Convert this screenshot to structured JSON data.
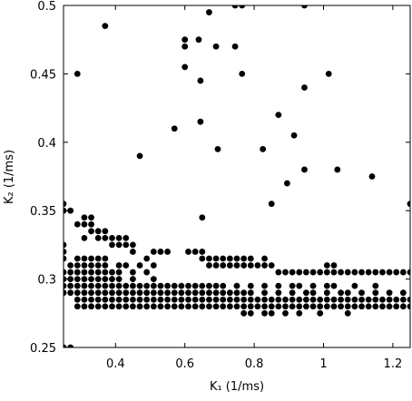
{
  "chart_data": {
    "type": "scatter",
    "xlabel": "K₁  (1/ms)",
    "ylabel": "K₂  (1/ms)",
    "xlim": [
      0.25,
      1.25
    ],
    "ylim": [
      0.25,
      0.5
    ],
    "xticks": [
      0.4,
      0.6,
      0.8,
      1,
      1.2
    ],
    "yticks": [
      0.25,
      0.3,
      0.35,
      0.4,
      0.45,
      0.5
    ],
    "grid": false,
    "color": "#000000",
    "series": [
      {
        "x": [
          0.29,
          0.31,
          0.33,
          0.35,
          0.37,
          0.39,
          0.41,
          0.43,
          0.45,
          0.47,
          0.49,
          0.51,
          0.53,
          0.55,
          0.57,
          0.59,
          0.61,
          0.63,
          0.65,
          0.67,
          0.69,
          0.71,
          0.73,
          0.75,
          0.77,
          0.79,
          0.81,
          0.83,
          0.85,
          0.87,
          0.89,
          0.91,
          0.93,
          0.95,
          0.97,
          0.99,
          1.01,
          1.03,
          1.05,
          1.07,
          1.09,
          1.11,
          1.13,
          1.15,
          1.17,
          1.19,
          1.21,
          1.23,
          1.25
        ],
        "values": [
          0.28,
          0.28,
          0.28,
          0.28,
          0.28,
          0.28,
          0.28,
          0.28,
          0.28,
          0.28,
          0.28,
          0.28,
          0.28,
          0.28,
          0.28,
          0.28,
          0.28,
          0.28,
          0.28,
          0.28,
          0.28,
          0.28,
          0.28,
          0.28,
          0.28,
          0.28,
          0.28,
          0.28,
          0.28,
          0.28,
          0.28,
          0.28,
          0.28,
          0.28,
          0.28,
          0.28,
          0.28,
          0.28,
          0.28,
          0.28,
          0.28,
          0.28,
          0.28,
          0.28,
          0.28,
          0.28,
          0.28,
          0.28,
          0.28
        ]
      },
      {
        "x": [
          0.29,
          0.31,
          0.33,
          0.35,
          0.37,
          0.39,
          0.41,
          0.43,
          0.45,
          0.47,
          0.49,
          0.51,
          0.53,
          0.55,
          0.57,
          0.59,
          0.61,
          0.63,
          0.65,
          0.67,
          0.69,
          0.71,
          0.73,
          0.75,
          0.77,
          0.79,
          0.81,
          0.83,
          0.85,
          0.87,
          0.89,
          0.91,
          0.93,
          0.95,
          0.97,
          0.99,
          1.01,
          1.03,
          1.05,
          1.07,
          1.09,
          1.11,
          1.13,
          1.15,
          1.17,
          1.19,
          1.21,
          1.23,
          1.25
        ],
        "values": [
          0.285,
          0.285,
          0.285,
          0.285,
          0.285,
          0.285,
          0.285,
          0.285,
          0.285,
          0.285,
          0.285,
          0.285,
          0.285,
          0.285,
          0.285,
          0.285,
          0.285,
          0.285,
          0.285,
          0.285,
          0.285,
          0.285,
          0.285,
          0.285,
          0.285,
          0.285,
          0.285,
          0.285,
          0.285,
          0.285,
          0.285,
          0.285,
          0.285,
          0.285,
          0.285,
          0.285,
          0.285,
          0.285,
          0.285,
          0.285,
          0.285,
          0.285,
          0.285,
          0.285,
          0.285,
          0.285,
          0.285,
          0.285,
          0.285
        ]
      },
      {
        "x": [
          0.25,
          0.27,
          0.29,
          0.31,
          0.33,
          0.35,
          0.37,
          0.39,
          0.41,
          0.43,
          0.45,
          0.47,
          0.49,
          0.51,
          0.53,
          0.55,
          0.57,
          0.59,
          0.61,
          0.63,
          0.65,
          0.67,
          0.69,
          0.71,
          0.73,
          0.75,
          0.77,
          0.79,
          0.83,
          0.87,
          0.91,
          0.95,
          0.97,
          1.01,
          1.05,
          1.07,
          1.11,
          1.15,
          1.19,
          1.23
        ],
        "values": [
          0.29,
          0.29,
          0.29,
          0.29,
          0.29,
          0.29,
          0.29,
          0.29,
          0.29,
          0.29,
          0.29,
          0.29,
          0.29,
          0.29,
          0.29,
          0.29,
          0.29,
          0.29,
          0.29,
          0.29,
          0.29,
          0.29,
          0.29,
          0.29,
          0.29,
          0.29,
          0.29,
          0.29,
          0.29,
          0.29,
          0.29,
          0.29,
          0.29,
          0.29,
          0.29,
          0.29,
          0.29,
          0.29,
          0.29,
          0.29
        ]
      },
      {
        "x": [
          0.25,
          0.27,
          0.29,
          0.31,
          0.33,
          0.35,
          0.37,
          0.39,
          0.41,
          0.43,
          0.45,
          0.47,
          0.49,
          0.51,
          0.53,
          0.55,
          0.57,
          0.59,
          0.61,
          0.63,
          0.65,
          0.67,
          0.69,
          0.71,
          0.75,
          0.79,
          0.83,
          0.87,
          0.91,
          0.93,
          0.97,
          1.01,
          1.03,
          1.09,
          1.15
        ],
        "values": [
          0.295,
          0.295,
          0.295,
          0.295,
          0.295,
          0.295,
          0.295,
          0.295,
          0.295,
          0.295,
          0.295,
          0.295,
          0.295,
          0.295,
          0.295,
          0.295,
          0.295,
          0.295,
          0.295,
          0.295,
          0.295,
          0.295,
          0.295,
          0.295,
          0.295,
          0.295,
          0.295,
          0.295,
          0.295,
          0.295,
          0.295,
          0.295,
          0.295,
          0.295,
          0.295
        ]
      },
      {
        "x": [
          0.25,
          0.27,
          0.29,
          0.31,
          0.33,
          0.35,
          0.37,
          0.39,
          0.41,
          0.45,
          0.51
        ],
        "values": [
          0.3,
          0.3,
          0.3,
          0.3,
          0.3,
          0.3,
          0.3,
          0.3,
          0.3,
          0.3,
          0.3
        ]
      },
      {
        "x": [
          0.25,
          0.27,
          0.29,
          0.31,
          0.33,
          0.35,
          0.37,
          0.39,
          0.41,
          0.45,
          0.49,
          0.87,
          0.89,
          0.91,
          0.93,
          0.95,
          0.97,
          0.99,
          1.01,
          1.03,
          1.05,
          1.07,
          1.09,
          1.11,
          1.13,
          1.15,
          1.17,
          1.19,
          1.21,
          1.23,
          1.25
        ],
        "values": [
          0.305,
          0.305,
          0.305,
          0.305,
          0.305,
          0.305,
          0.305,
          0.305,
          0.305,
          0.305,
          0.305,
          0.305,
          0.305,
          0.305,
          0.305,
          0.305,
          0.305,
          0.305,
          0.305,
          0.305,
          0.305,
          0.305,
          0.305,
          0.305,
          0.305,
          0.305,
          0.305,
          0.305,
          0.305,
          0.305,
          0.305
        ]
      },
      {
        "x": [
          0.27,
          0.29,
          0.31,
          0.33,
          0.35,
          0.37,
          0.41,
          0.43,
          0.47,
          0.51,
          0.67,
          0.69,
          0.71,
          0.73,
          0.75,
          0.77,
          0.79,
          0.81,
          0.83,
          0.85,
          1.01,
          1.03
        ],
        "values": [
          0.31,
          0.31,
          0.31,
          0.31,
          0.31,
          0.31,
          0.31,
          0.31,
          0.31,
          0.31,
          0.31,
          0.31,
          0.31,
          0.31,
          0.31,
          0.31,
          0.31,
          0.31,
          0.31,
          0.31,
          0.31,
          0.31
        ]
      },
      {
        "x": [
          0.25,
          0.29,
          0.31,
          0.33,
          0.35,
          0.37,
          0.49,
          0.65,
          0.67,
          0.69,
          0.71,
          0.73,
          0.75,
          0.77,
          0.79,
          0.83
        ],
        "values": [
          0.315,
          0.315,
          0.315,
          0.315,
          0.315,
          0.315,
          0.315,
          0.315,
          0.315,
          0.315,
          0.315,
          0.315,
          0.315,
          0.315,
          0.315,
          0.315
        ]
      },
      {
        "x": [
          0.25,
          0.45,
          0.51,
          0.53,
          0.55,
          0.61,
          0.63,
          0.65
        ],
        "values": [
          0.32,
          0.32,
          0.32,
          0.32,
          0.32,
          0.32,
          0.32,
          0.32
        ]
      },
      {
        "x": [
          0.25,
          0.39,
          0.41,
          0.43,
          0.45
        ],
        "values": [
          0.325,
          0.325,
          0.325,
          0.325,
          0.325
        ]
      },
      {
        "x": [
          0.31,
          0.35,
          0.37,
          0.39,
          0.41,
          0.43
        ],
        "values": [
          0.33,
          0.33,
          0.33,
          0.33,
          0.33,
          0.33
        ]
      },
      {
        "x": [
          0.33,
          0.35,
          0.37
        ],
        "values": [
          0.335,
          0.335,
          0.335
        ]
      },
      {
        "x": [
          0.29,
          0.31,
          0.33
        ],
        "values": [
          0.34,
          0.34,
          0.34
        ]
      },
      {
        "x": [
          0.31,
          0.33,
          0.65
        ],
        "values": [
          0.345,
          0.345,
          0.345
        ]
      },
      {
        "x": [
          0.25,
          0.27
        ],
        "values": [
          0.35,
          0.35
        ]
      },
      {
        "x": [
          0.25,
          0.85,
          1.25
        ],
        "values": [
          0.355,
          0.355,
          0.355
        ]
      },
      {
        "x": [
          0.77,
          0.79,
          0.83,
          0.85,
          0.89,
          0.93,
          0.99,
          1.07
        ],
        "values": [
          0.275,
          0.275,
          0.275,
          0.275,
          0.275,
          0.275,
          0.275,
          0.275
        ]
      },
      {
        "x": [
          0.25,
          0.27
        ],
        "values": [
          0.25,
          0.25
        ]
      },
      {
        "x": [
          0.29,
          0.37,
          0.47,
          0.57,
          0.6,
          0.6,
          0.6,
          0.64,
          0.645,
          0.645,
          0.67,
          0.69,
          0.695,
          0.745,
          0.745,
          0.765,
          0.765,
          0.825,
          0.87,
          0.895,
          0.915,
          0.945,
          0.945,
          0.945,
          1.015,
          1.04,
          1.14
        ],
        "values": [
          0.45,
          0.485,
          0.39,
          0.41,
          0.475,
          0.47,
          0.455,
          0.475,
          0.445,
          0.415,
          0.495,
          0.47,
          0.395,
          0.5,
          0.47,
          0.5,
          0.45,
          0.395,
          0.42,
          0.37,
          0.405,
          0.5,
          0.44,
          0.38,
          0.45,
          0.38,
          0.375
        ]
      }
    ]
  }
}
